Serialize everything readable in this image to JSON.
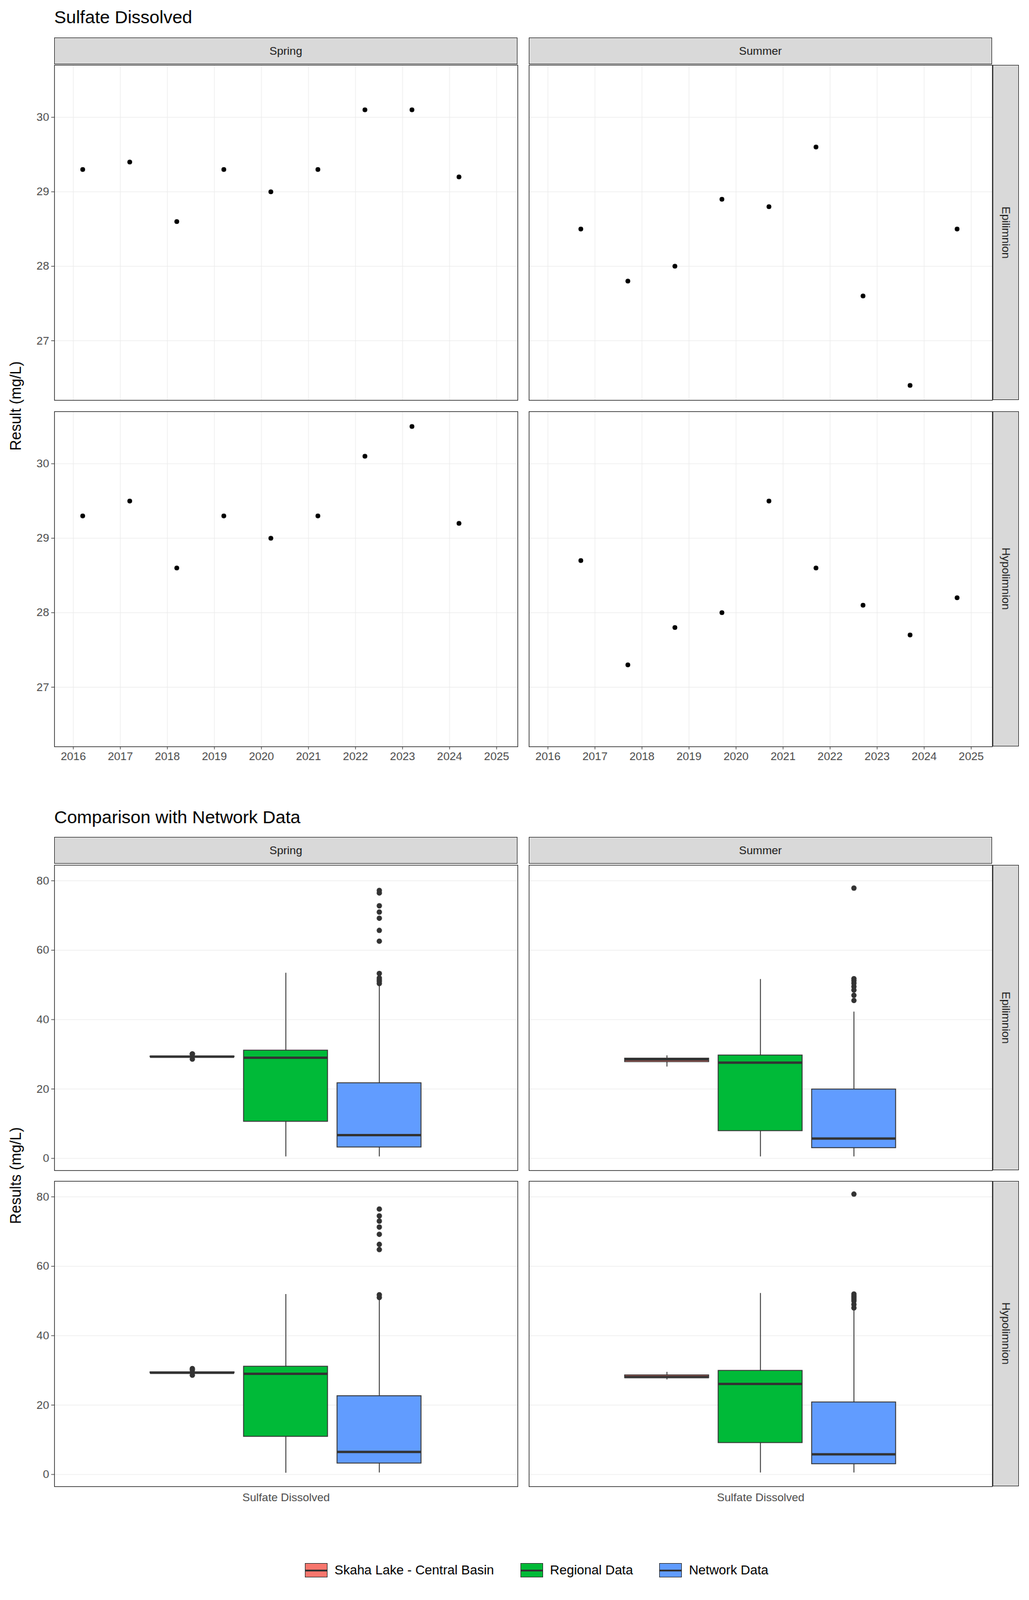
{
  "chart_data": [
    {
      "type": "scatter",
      "title": "Sulfate Dissolved",
      "y_label": "Result (mg/L)",
      "columns": [
        "Spring",
        "Summer"
      ],
      "rows": [
        "Epilimnion",
        "Hypolimnion"
      ],
      "xlim": [
        2015.6,
        2025.45
      ],
      "xticks": [
        2016,
        2017,
        2018,
        2019,
        2020,
        2021,
        2022,
        2023,
        2024,
        2025
      ],
      "ylim": [
        26.2,
        30.7
      ],
      "yticks": [
        27,
        28,
        29,
        30
      ],
      "grid": true,
      "color": "#000000",
      "panels": [
        {
          "column": "Spring",
          "row": "Epilimnion",
          "x": [
            2016.2,
            2017.2,
            2018.2,
            2019.2,
            2020.2,
            2021.2,
            2022.2,
            2023.2,
            2024.2
          ],
          "values": [
            29.3,
            29.4,
            28.6,
            29.3,
            29.0,
            29.3,
            30.1,
            30.1,
            29.2
          ]
        },
        {
          "column": "Summer",
          "row": "Epilimnion",
          "x": [
            2016.7,
            2017.7,
            2018.7,
            2019.7,
            2020.7,
            2021.7,
            2022.7,
            2023.7,
            2024.7
          ],
          "values": [
            28.5,
            27.8,
            28.0,
            28.9,
            28.8,
            29.6,
            27.6,
            26.4,
            28.5
          ]
        },
        {
          "column": "Spring",
          "row": "Hypolimnion",
          "x": [
            2016.2,
            2017.2,
            2018.2,
            2019.2,
            2020.2,
            2021.2,
            2022.2,
            2023.2,
            2024.2
          ],
          "values": [
            29.3,
            29.5,
            28.6,
            29.3,
            29.0,
            29.3,
            30.1,
            30.5,
            29.2
          ]
        },
        {
          "column": "Summer",
          "row": "Hypolimnion",
          "x": [
            2016.7,
            2017.7,
            2018.7,
            2019.7,
            2020.7,
            2021.7,
            2022.7,
            2023.7,
            2024.7
          ],
          "values": [
            28.7,
            27.3,
            27.8,
            28.0,
            29.5,
            28.6,
            28.1,
            27.7,
            28.2
          ]
        }
      ]
    },
    {
      "type": "box",
      "title": "Comparison with Network Data",
      "y_label": "Results (mg/L)",
      "columns": [
        "Spring",
        "Summer"
      ],
      "rows": [
        "Epilimnion",
        "Hypolimnion"
      ],
      "categories": [
        "Sulfate Dissolved"
      ],
      "ylim": [
        -3.5,
        84.5
      ],
      "yticks": [
        0,
        20,
        40,
        60,
        80
      ],
      "grid": true,
      "legend": "bottom",
      "series": [
        {
          "name": "Skaha Lake - Central Basin",
          "color": "#F8766D"
        },
        {
          "name": "Regional Data",
          "color": "#00BA38"
        },
        {
          "name": "Network Data",
          "color": "#619CFF"
        }
      ],
      "panels": [
        {
          "column": "Spring",
          "row": "Epilimnion",
          "boxes": [
            {
              "series": "Skaha Lake - Central Basin",
              "whisker_low": 29.0,
              "q1": 29.2,
              "median": 29.3,
              "q3": 29.4,
              "whisker_high": 29.4,
              "outliers": [
                28.6,
                30.1,
                30.1
              ]
            },
            {
              "series": "Regional Data",
              "whisker_low": 0.5,
              "q1": 10.6,
              "median": 29.0,
              "q3": 31.1,
              "whisker_high": 53.4,
              "outliers": []
            },
            {
              "series": "Network Data",
              "whisker_low": 0.5,
              "q1": 3.2,
              "median": 6.7,
              "q3": 21.7,
              "whisker_high": 49.9,
              "outliers": [
                50.4,
                51.0,
                51.5,
                52.0,
                53.3,
                62.6,
                65.7,
                69.2,
                71.0,
                72.8,
                76.5,
                77.2
              ]
            }
          ]
        },
        {
          "column": "Summer",
          "row": "Epilimnion",
          "boxes": [
            {
              "series": "Skaha Lake - Central Basin",
              "whisker_low": 26.4,
              "q1": 27.8,
              "median": 28.5,
              "q3": 28.8,
              "whisker_high": 29.6,
              "outliers": []
            },
            {
              "series": "Regional Data",
              "whisker_low": 0.5,
              "q1": 7.9,
              "median": 27.6,
              "q3": 29.7,
              "whisker_high": 51.6,
              "outliers": []
            },
            {
              "series": "Network Data",
              "whisker_low": 0.5,
              "q1": 3.0,
              "median": 5.7,
              "q3": 19.9,
              "whisker_high": 42.2,
              "outliers": [
                45.5,
                47.0,
                48.5,
                49.5,
                50.5,
                51.2,
                51.8,
                77.9
              ]
            }
          ]
        },
        {
          "column": "Spring",
          "row": "Hypolimnion",
          "boxes": [
            {
              "series": "Skaha Lake - Central Basin",
              "whisker_low": 29.0,
              "q1": 29.2,
              "median": 29.3,
              "q3": 29.5,
              "whisker_high": 29.5,
              "outliers": [
                28.6,
                30.1,
                30.5
              ]
            },
            {
              "series": "Regional Data",
              "whisker_low": 0.4,
              "q1": 10.9,
              "median": 29.0,
              "q3": 31.1,
              "whisker_high": 51.9,
              "outliers": []
            },
            {
              "series": "Network Data",
              "whisker_low": 0.5,
              "q1": 3.2,
              "median": 6.5,
              "q3": 22.6,
              "whisker_high": 50.4,
              "outliers": [
                51.0,
                51.8,
                64.8,
                66.3,
                69.2,
                71.3,
                73.0,
                74.5,
                76.5
              ]
            }
          ]
        },
        {
          "column": "Summer",
          "row": "Hypolimnion",
          "boxes": [
            {
              "series": "Skaha Lake - Central Basin",
              "whisker_low": 27.3,
              "q1": 27.8,
              "median": 28.1,
              "q3": 28.6,
              "whisker_high": 29.5,
              "outliers": []
            },
            {
              "series": "Regional Data",
              "whisker_low": 0.5,
              "q1": 9.1,
              "median": 26.1,
              "q3": 29.9,
              "whisker_high": 52.2,
              "outliers": []
            },
            {
              "series": "Network Data",
              "whisker_low": 0.5,
              "q1": 3.0,
              "median": 5.8,
              "q3": 20.8,
              "whisker_high": 47.5,
              "outliers": [
                48.0,
                49.0,
                50.0,
                50.5,
                51.0,
                51.5,
                52.0,
                80.8
              ]
            }
          ]
        }
      ]
    }
  ]
}
